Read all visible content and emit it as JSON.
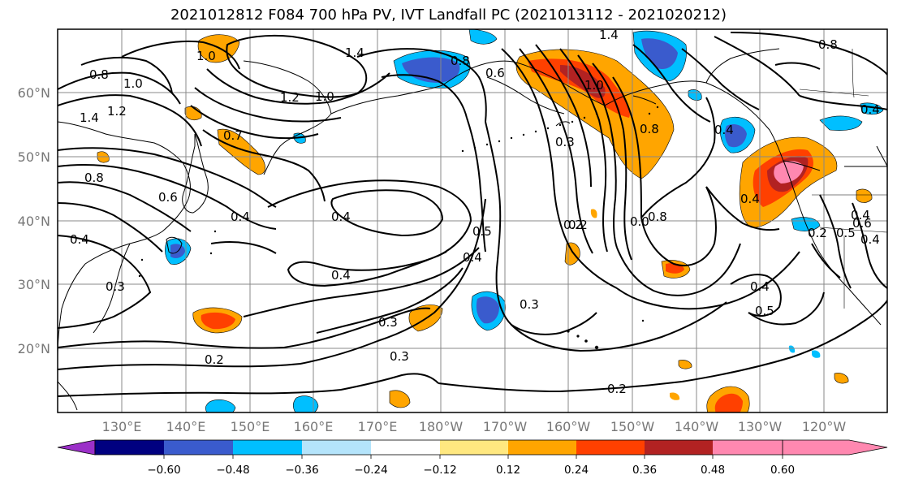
{
  "title": "2021012812 F084 700 hPa PV, IVT Landfall PC (2021013112 - 2021020212)",
  "map": {
    "lon_labels": [
      "130°E",
      "140°E",
      "150°E",
      "160°E",
      "170°E",
      "180°W",
      "170°W",
      "160°W",
      "150°W",
      "140°W",
      "130°W",
      "120°W"
    ],
    "lat_labels": [
      "60°N",
      "50°N",
      "40°N",
      "30°N",
      "20°N"
    ],
    "contour_labels": [
      "1.0",
      "0.8",
      "1.0",
      "1.2",
      "1.4",
      "1.4",
      "1.2",
      "1.0",
      "0.7",
      "0.8",
      "0.6",
      "0.4",
      "0.4",
      "0.3",
      "0.2",
      "0.4",
      "0.5",
      "0.4",
      "0.4",
      "0.3",
      "0.3",
      "0.3",
      "0.2",
      "0.2",
      "0.8",
      "0.6",
      "1.0",
      "0.3",
      "0.8",
      "0.2",
      "0.0",
      "0.8",
      "1.4",
      "0.8",
      "0.4",
      "0.4",
      "0.4",
      "0.4",
      "0.5",
      "0.6",
      "0.4",
      "0.5",
      "0.4",
      "0.2"
    ],
    "coast_color": "#000000",
    "grid_color": "#888888"
  },
  "colorbar": {
    "ticks": [
      "−0.60",
      "−0.48",
      "−0.36",
      "−0.24",
      "−0.12",
      "0.12",
      "0.24",
      "0.36",
      "0.48",
      "0.60"
    ],
    "colors": [
      "#9b30c8",
      "#000080",
      "#3a5bcd",
      "#00bfff",
      "#b4e4fb",
      "#ffffff",
      "#ffe880",
      "#ffa500",
      "#ff4000",
      "#b22222",
      "#ff88b0"
    ],
    "extend": "both"
  }
}
